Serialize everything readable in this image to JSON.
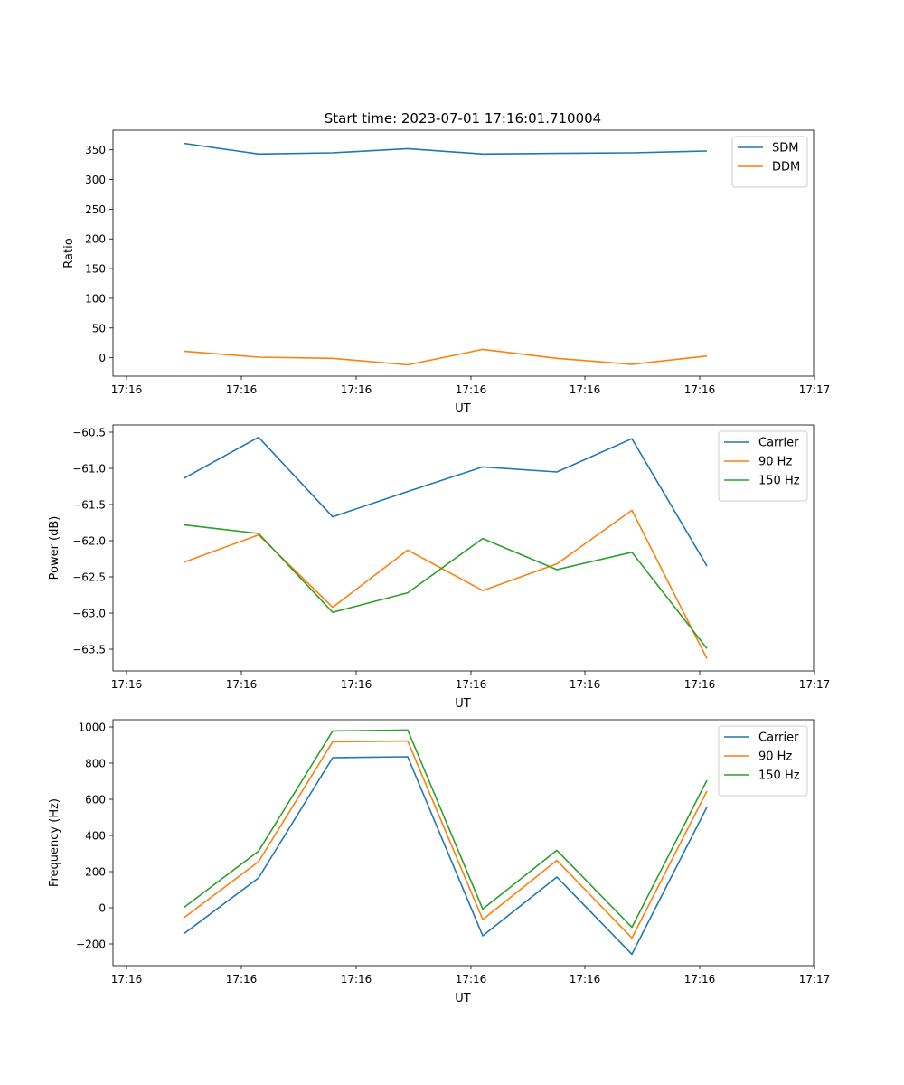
{
  "figure": {
    "title": "Start time: 2023-07-01 17:16:01.710004"
  },
  "chart_data": [
    {
      "type": "line",
      "xlabel": "UT",
      "ylabel": "Ratio",
      "x_tick_labels": [
        "17:16",
        "17:16",
        "17:16",
        "17:16",
        "17:16",
        "17:16",
        "17:16",
        "17:17"
      ],
      "y_ticks": [
        0,
        50,
        100,
        150,
        200,
        250,
        300,
        350
      ],
      "ylim": [
        -31,
        383
      ],
      "legend_position": "top-right",
      "series": [
        {
          "name": "SDM",
          "color": "#1f77b4",
          "values": [
            361,
            343,
            345,
            352,
            343,
            344,
            345,
            348
          ]
        },
        {
          "name": "DDM",
          "color": "#ff7f0e",
          "values": [
            11,
            1,
            -1,
            -12,
            14,
            -1,
            -11,
            3
          ]
        }
      ]
    },
    {
      "type": "line",
      "xlabel": "UT",
      "ylabel": "Power (dB)",
      "x_tick_labels": [
        "17:16",
        "17:16",
        "17:16",
        "17:16",
        "17:16",
        "17:16",
        "17:16",
        "17:17"
      ],
      "y_ticks": [
        -60.5,
        -61.0,
        -61.5,
        -62.0,
        -62.5,
        -63.0,
        -63.5
      ],
      "y_tick_labels": [
        "−60.5",
        "−61.0",
        "−61.5",
        "−62.0",
        "−62.5",
        "−63.0",
        "−63.5"
      ],
      "ylim": [
        -63.8,
        -60.4
      ],
      "legend_position": "top-right",
      "series": [
        {
          "name": "Carrier",
          "color": "#1f77b4",
          "values": [
            -61.14,
            -60.57,
            -61.67,
            -61.32,
            -60.98,
            -61.05,
            -60.59,
            -62.35
          ]
        },
        {
          "name": "90 Hz",
          "color": "#ff7f0e",
          "values": [
            -62.3,
            -61.92,
            -62.92,
            -62.13,
            -62.69,
            -62.32,
            -61.58,
            -63.63
          ]
        },
        {
          "name": "150 Hz",
          "color": "#2ca02c",
          "values": [
            -61.78,
            -61.9,
            -62.99,
            -62.72,
            -61.97,
            -62.4,
            -62.16,
            -63.49
          ]
        }
      ]
    },
    {
      "type": "line",
      "xlabel": "UT",
      "ylabel": "Frequency (Hz)",
      "x_tick_labels": [
        "17:16",
        "17:16",
        "17:16",
        "17:16",
        "17:16",
        "17:16",
        "17:16",
        "17:17"
      ],
      "y_ticks": [
        -200,
        0,
        200,
        400,
        600,
        800,
        1000
      ],
      "y_tick_labels": [
        "−200",
        "0",
        "200",
        "400",
        "600",
        "800",
        "1000"
      ],
      "ylim": [
        -320,
        1040
      ],
      "legend_position": "top-right",
      "series": [
        {
          "name": "Carrier",
          "color": "#1f77b4",
          "values": [
            -145,
            165,
            830,
            835,
            -155,
            170,
            -257,
            557
          ]
        },
        {
          "name": "90 Hz",
          "color": "#ff7f0e",
          "values": [
            -57,
            255,
            918,
            922,
            -65,
            262,
            -167,
            645
          ]
        },
        {
          "name": "150 Hz",
          "color": "#2ca02c",
          "values": [
            0,
            313,
            978,
            983,
            -7,
            318,
            -108,
            705
          ]
        }
      ]
    }
  ]
}
